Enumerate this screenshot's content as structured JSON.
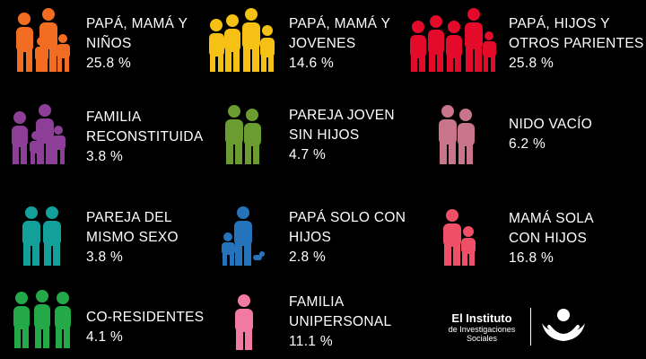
{
  "categories": [
    {
      "id": "papa-mama-ninos",
      "icon": "family-parents-children-icon",
      "color": "#f26d21",
      "lines": [
        "PAPÁ, MAMÁ Y",
        "NIÑOS"
      ],
      "value": "25.8 %"
    },
    {
      "id": "papa-mama-jovenes",
      "icon": "family-parents-youth-icon",
      "color": "#f5c115",
      "lines": [
        "PAPÁ, MAMÁ Y",
        "JOVENES"
      ],
      "value": "14.6 %"
    },
    {
      "id": "papa-hijos-otros",
      "icon": "extended-family-icon",
      "color": "#e30a2a",
      "lines": [
        "PAPÁ, HIJOS Y",
        "OTROS PARIENTES"
      ],
      "value": "25.8 %"
    },
    {
      "id": "familia-reconstituida",
      "icon": "blended-family-icon",
      "color": "#8d3f97",
      "lines": [
        "FAMILIA",
        "RECONSTITUIDA"
      ],
      "value": "3.8 %"
    },
    {
      "id": "pareja-joven",
      "icon": "young-couple-icon",
      "color": "#6b9c2f",
      "lines": [
        "PAREJA JOVEN",
        "SIN HIJOS"
      ],
      "value": "4.7 %"
    },
    {
      "id": "nido-vacio",
      "icon": "empty-nest-couple-icon",
      "color": "#c8748a",
      "lines": [
        "NIDO VACÍO"
      ],
      "value": "6.2 %"
    },
    {
      "id": "pareja-mismo-sexo",
      "icon": "same-sex-couple-icon",
      "color": "#13a09a",
      "lines": [
        "PAREJA DEL",
        "MISMO SEXO"
      ],
      "value": "3.8 %"
    },
    {
      "id": "papa-solo",
      "icon": "single-father-icon",
      "color": "#2573bb",
      "lines": [
        "PAPÁ SOLO CON",
        "HIJOS"
      ],
      "value": "2.8 %"
    },
    {
      "id": "mama-sola",
      "icon": "single-mother-icon",
      "color": "#f04f68",
      "lines": [
        "MAMÁ SOLA",
        "CON HIJOS"
      ],
      "value": "16.8 %"
    },
    {
      "id": "co-residentes",
      "icon": "co-residents-icon",
      "color": "#23a947",
      "lines": [
        "CO-RESIDENTES"
      ],
      "value": "4.1 %"
    },
    {
      "id": "unipersonal",
      "icon": "single-person-icon",
      "color": "#f07aa0",
      "lines": [
        "FAMILIA",
        "UNIPERSONAL"
      ],
      "value": "11.1 %"
    }
  ],
  "logo": {
    "title": "El Instituto",
    "sub1": "de Investigaciones",
    "sub2": "Sociales",
    "icon": "institute-logo-icon",
    "color": "#ffffff"
  }
}
